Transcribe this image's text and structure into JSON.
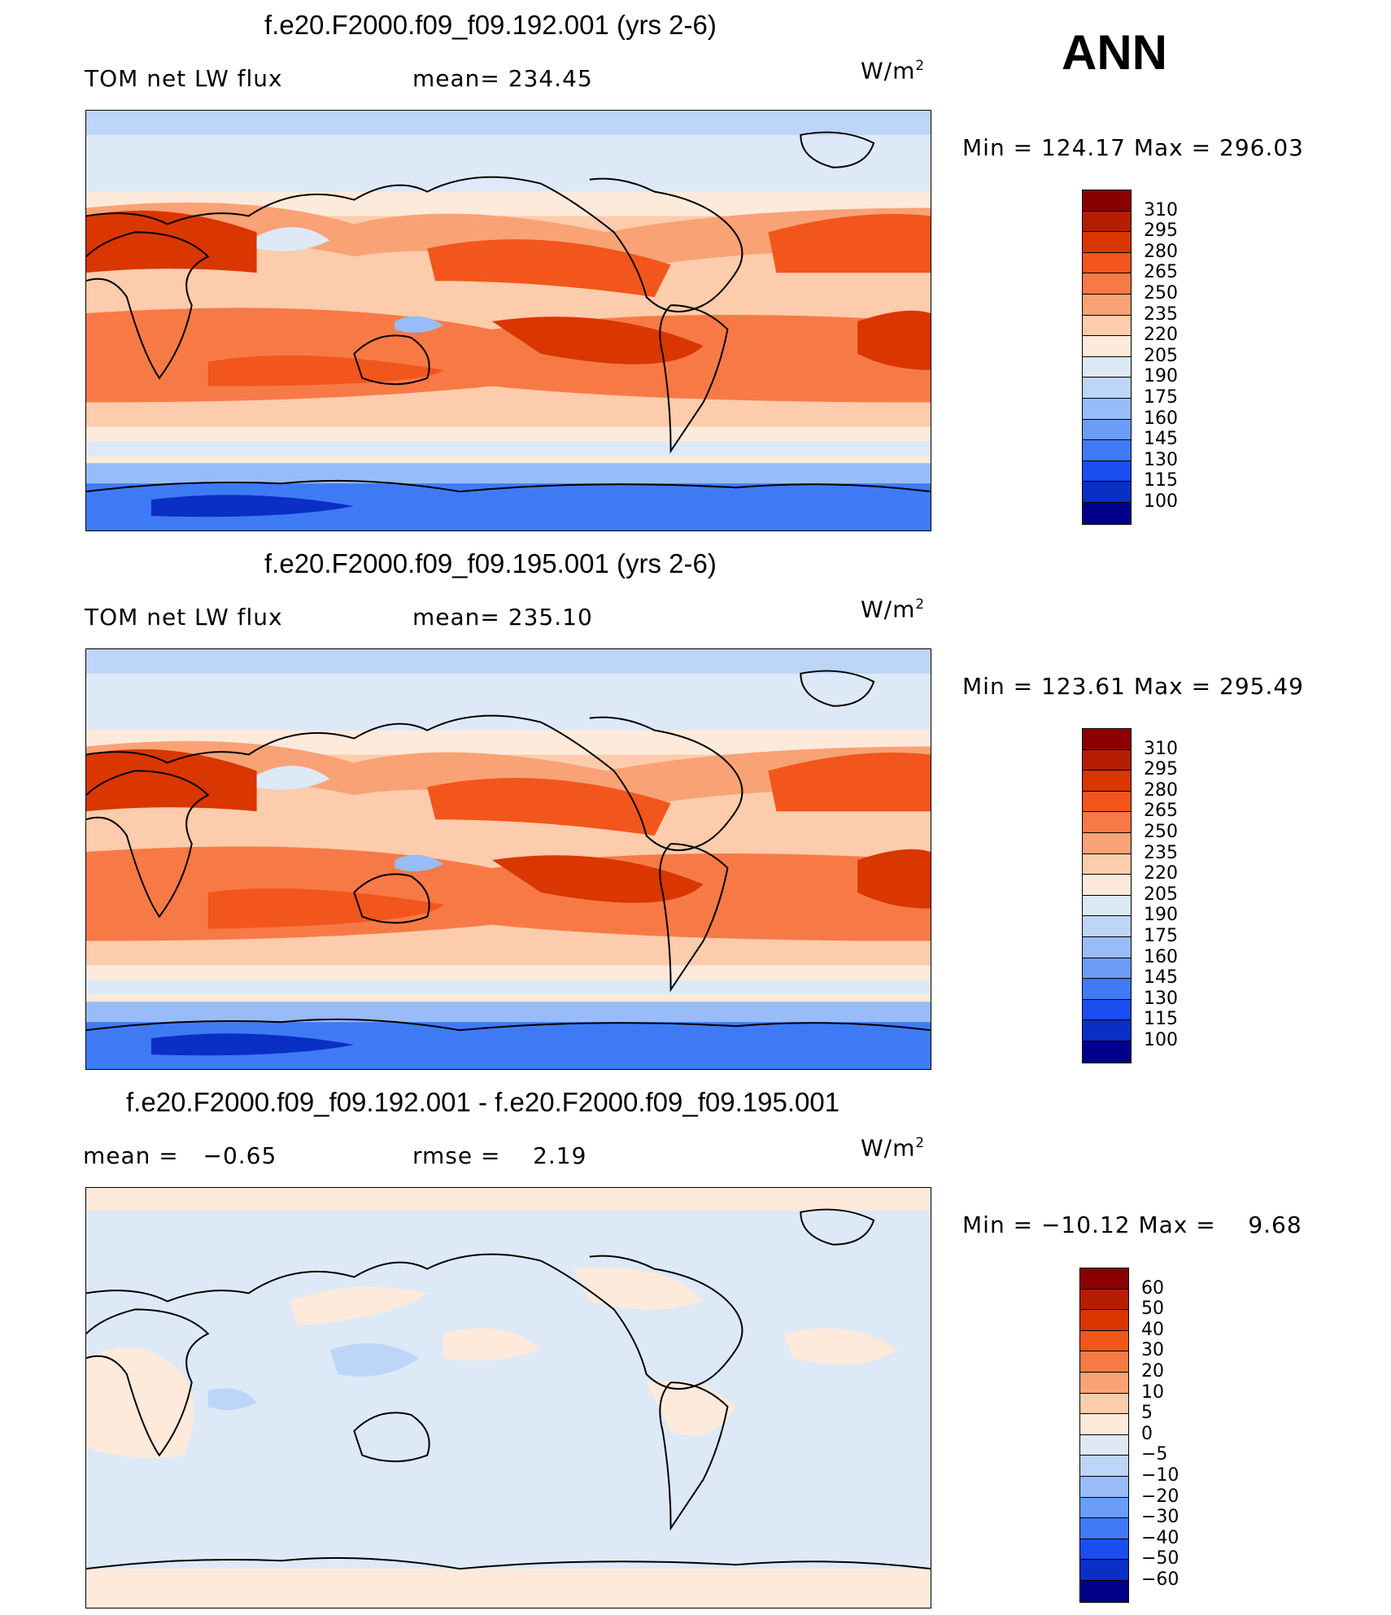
{
  "season": "ANN",
  "units": "W/m",
  "units_sup": "2",
  "panel1": {
    "title": "f.e20.F2000.f09_f09.192.001 (yrs 2-6)",
    "variable": "TOM net LW flux",
    "mean_label": "mean=",
    "mean": "234.45",
    "min_label": "Min  =",
    "min": "124.17",
    "max_label": "Max  =",
    "max": "296.03"
  },
  "panel2": {
    "title": "f.e20.F2000.f09_f09.195.001 (yrs 2-6)",
    "variable": "TOM net LW flux",
    "mean_label": "mean=",
    "mean": "235.10",
    "min_label": "Min  =",
    "min": "123.61",
    "max_label": "Max  =",
    "max": "295.49"
  },
  "panel3": {
    "title": "f.e20.F2000.f09_f09.192.001 - f.e20.F2000.f09_f09.195.001",
    "mean_label": "mean  =",
    "mean": "−0.65",
    "rmse_label": "rmse  =",
    "rmse": "2.19",
    "min_label": "Min  =",
    "min": "−10.12",
    "max_label": "Max  =",
    "max": "9.68"
  },
  "abs_colorbar": {
    "labels": [
      "310",
      "295",
      "280",
      "265",
      "250",
      "235",
      "220",
      "205",
      "190",
      "175",
      "160",
      "145",
      "130",
      "115",
      "100"
    ],
    "colors": [
      "#8a0000",
      "#b51e00",
      "#d93600",
      "#f2561c",
      "#f77a46",
      "#f9a276",
      "#fcccac",
      "#fdeadb",
      "#dde9f6",
      "#bdd5f6",
      "#98bcf7",
      "#6c9df6",
      "#3f7af5",
      "#1a4ef0",
      "#0a2fc5",
      "#00008a"
    ]
  },
  "diff_colorbar": {
    "labels": [
      "60",
      "50",
      "40",
      "30",
      "20",
      "10",
      "5",
      "0",
      "−5",
      "−10",
      "−20",
      "−30",
      "−40",
      "−50",
      "−60"
    ],
    "colors": [
      "#8a0000",
      "#b51e00",
      "#d93600",
      "#f2561c",
      "#f77a46",
      "#f9a276",
      "#fcccac",
      "#fdeadb",
      "#dde9f6",
      "#bdd5f6",
      "#98bcf7",
      "#6c9df6",
      "#3f7af5",
      "#1a4ef0",
      "#0a2fc5",
      "#00008a"
    ]
  }
}
